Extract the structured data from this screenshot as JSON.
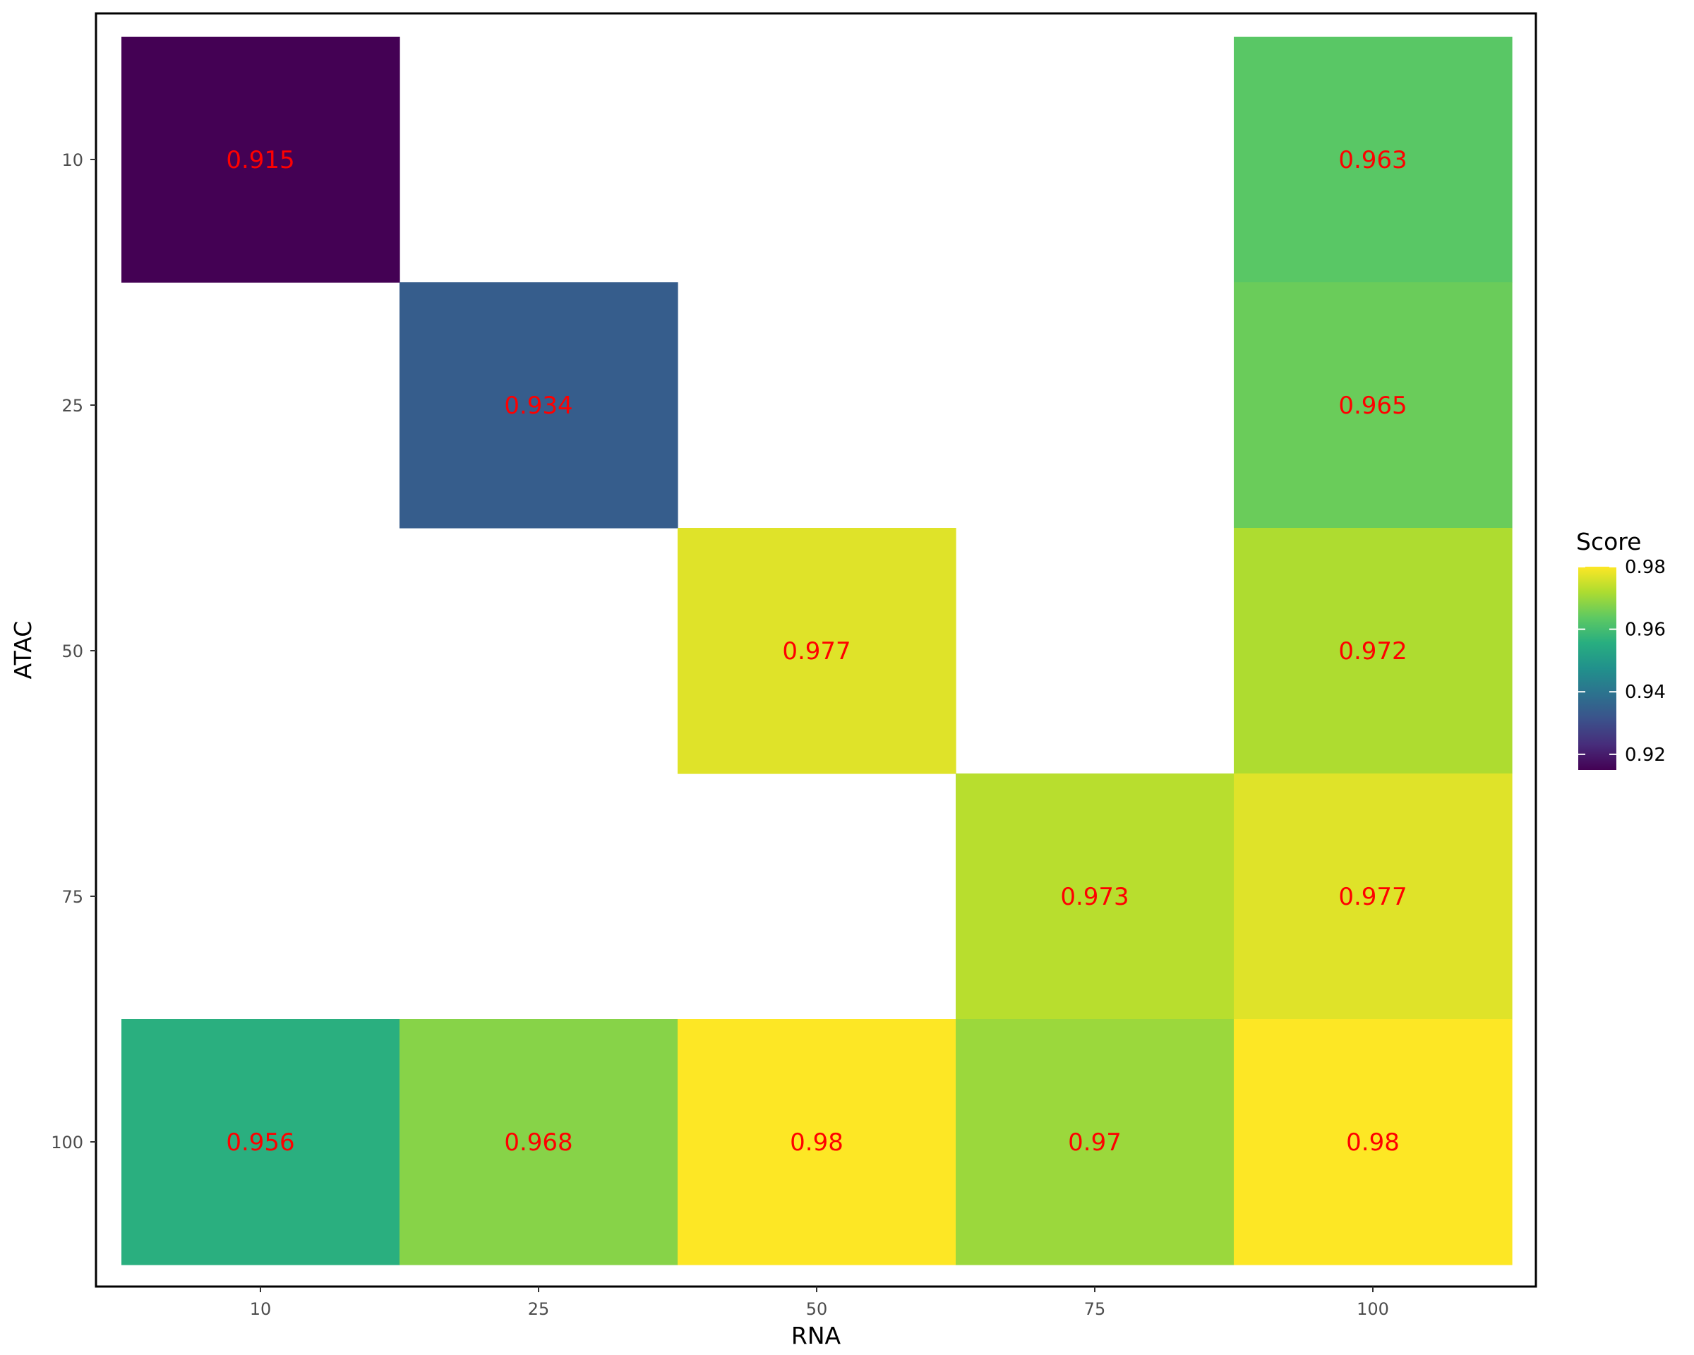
{
  "chart_data": {
    "type": "heatmap",
    "xlabel": "RNA",
    "ylabel": "ATAC",
    "x_categories": [
      "10",
      "25",
      "50",
      "75",
      "100"
    ],
    "y_categories": [
      "10",
      "25",
      "50",
      "75",
      "100"
    ],
    "cells": [
      {
        "x": "10",
        "y": "10",
        "value": 0.915,
        "label": "0.915"
      },
      {
        "x": "100",
        "y": "10",
        "value": 0.963,
        "label": "0.963"
      },
      {
        "x": "25",
        "y": "25",
        "value": 0.934,
        "label": "0.934"
      },
      {
        "x": "100",
        "y": "25",
        "value": 0.965,
        "label": "0.965"
      },
      {
        "x": "50",
        "y": "50",
        "value": 0.977,
        "label": "0.977"
      },
      {
        "x": "100",
        "y": "50",
        "value": 0.972,
        "label": "0.972"
      },
      {
        "x": "75",
        "y": "75",
        "value": 0.973,
        "label": "0.973"
      },
      {
        "x": "100",
        "y": "75",
        "value": 0.977,
        "label": "0.977"
      },
      {
        "x": "10",
        "y": "100",
        "value": 0.956,
        "label": "0.956"
      },
      {
        "x": "25",
        "y": "100",
        "value": 0.968,
        "label": "0.968"
      },
      {
        "x": "50",
        "y": "100",
        "value": 0.98,
        "label": "0.98"
      },
      {
        "x": "75",
        "y": "100",
        "value": 0.97,
        "label": "0.97"
      },
      {
        "x": "100",
        "y": "100",
        "value": 0.98,
        "label": "0.98"
      }
    ],
    "label_color": "#ff0000",
    "colormap": "viridis",
    "legend": {
      "title": "Score",
      "placement": "right",
      "range": [
        0.915,
        0.98
      ],
      "ticks": [
        {
          "value": 0.92,
          "label": "0.92"
        },
        {
          "value": 0.94,
          "label": "0.94"
        },
        {
          "value": 0.96,
          "label": "0.96"
        },
        {
          "value": 0.98,
          "label": "0.98"
        }
      ]
    },
    "grid": false,
    "panel_border": true
  }
}
